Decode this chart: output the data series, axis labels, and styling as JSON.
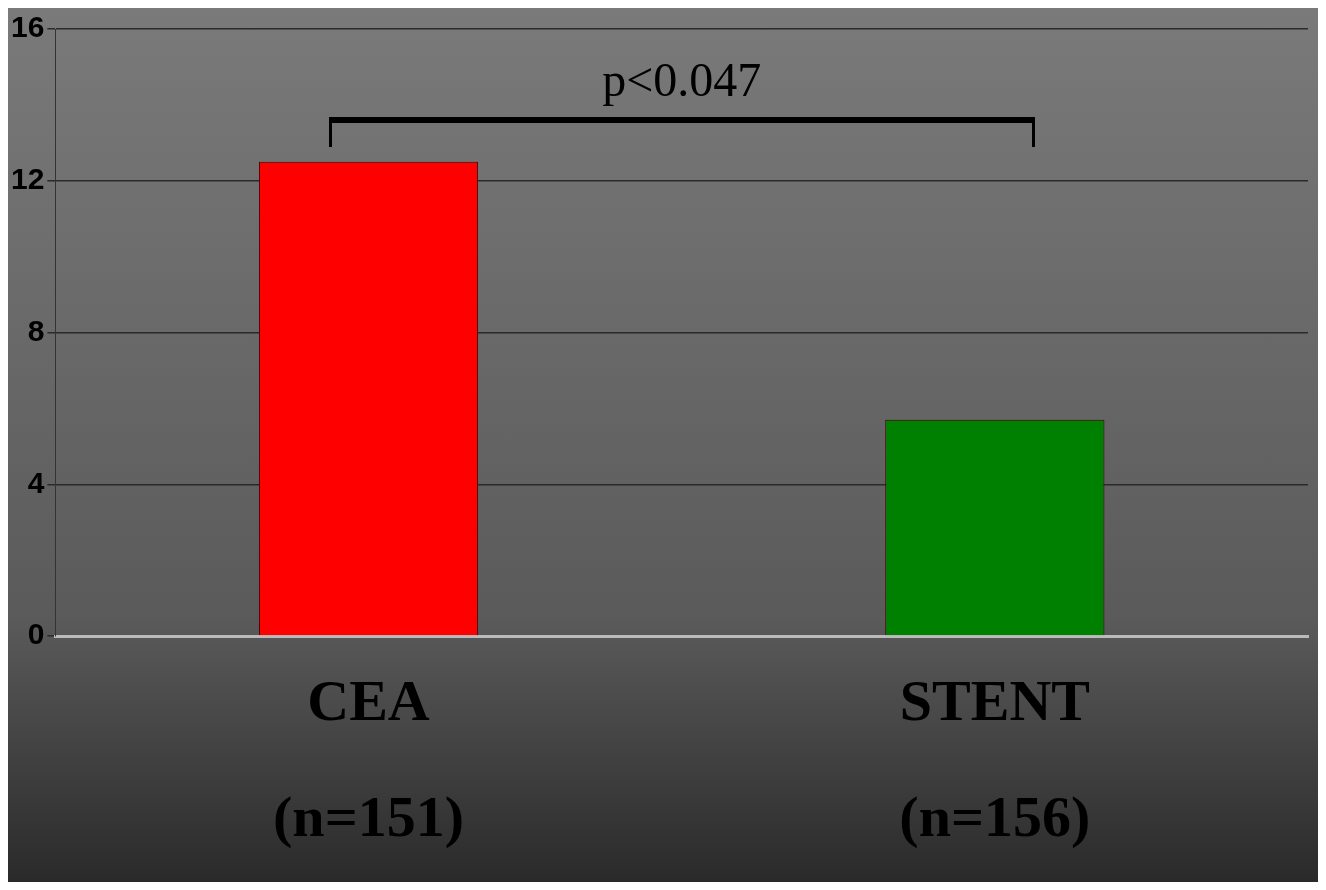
{
  "chart_data": {
    "type": "bar",
    "categories": [
      "CEA\n(n=151)",
      "STENT\n(n=156)"
    ],
    "values": [
      12.5,
      5.7
    ],
    "colors": [
      "#ff0000",
      "#008000"
    ],
    "ylim": [
      0,
      16
    ],
    "yticks": [
      0,
      4,
      8,
      12,
      16
    ],
    "grid": "y",
    "legend": false,
    "annotations": [
      "p<0.047"
    ]
  }
}
